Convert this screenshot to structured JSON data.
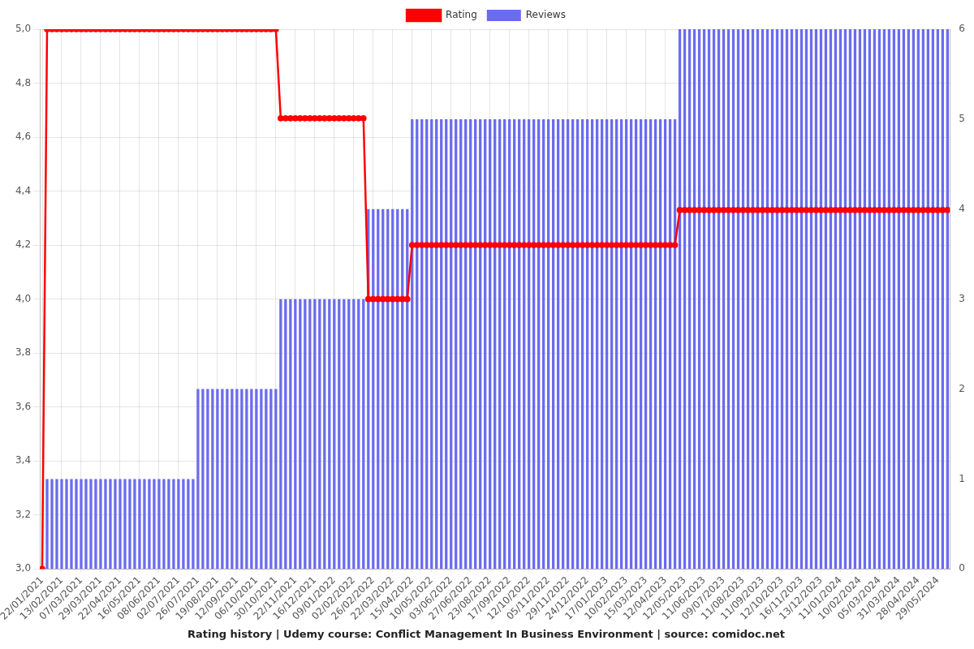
{
  "chart_data": {
    "type": "line",
    "title": "Rating history | Udemy course: Conflict Management In Business Environment | source: comidoc.net",
    "legend": "top",
    "grid": true,
    "categories": [
      "22/01/2021",
      null,
      null,
      null,
      "13/02/2021",
      null,
      null,
      null,
      "07/03/2021",
      null,
      null,
      null,
      "29/03/2021",
      null,
      null,
      null,
      "22/04/2021",
      null,
      null,
      null,
      "16/05/2021",
      null,
      null,
      null,
      "08/06/2021",
      null,
      null,
      null,
      "02/07/2021",
      null,
      null,
      null,
      "26/07/2021",
      null,
      null,
      null,
      "19/08/2021",
      null,
      null,
      null,
      "12/09/2021",
      null,
      null,
      null,
      "06/10/2021",
      null,
      null,
      null,
      "30/10/2021",
      null,
      null,
      null,
      "22/11/2021",
      null,
      null,
      null,
      "16/12/2021",
      null,
      null,
      null,
      "09/01/2022",
      null,
      null,
      null,
      "02/02/2022",
      null,
      null,
      null,
      "26/02/2022",
      null,
      null,
      null,
      "22/03/2022",
      null,
      null,
      null,
      "15/04/2022",
      null,
      null,
      null,
      "10/05/2022",
      null,
      null,
      null,
      "03/06/2022",
      null,
      null,
      null,
      "27/06/2022",
      null,
      null,
      null,
      "23/08/2022",
      null,
      null,
      null,
      "17/09/2022",
      null,
      null,
      null,
      "12/10/2022",
      null,
      null,
      null,
      "05/11/2022",
      null,
      null,
      null,
      "29/11/2022",
      null,
      null,
      null,
      "24/12/2022",
      null,
      null,
      null,
      "17/01/2023",
      null,
      null,
      null,
      "10/02/2023",
      null,
      null,
      null,
      "15/03/2023",
      null,
      null,
      null,
      "12/04/2023",
      null,
      null,
      null,
      "12/05/2023",
      null,
      null,
      null,
      "11/06/2023",
      null,
      null,
      null,
      "09/07/2023",
      null,
      null,
      null,
      "11/08/2023",
      null,
      null,
      null,
      "11/09/2023",
      null,
      null,
      null,
      "12/10/2023",
      null,
      null,
      null,
      "16/11/2023",
      null,
      null,
      null,
      "13/12/2023",
      null,
      null,
      null,
      "11/01/2024",
      null,
      null,
      null,
      "10/02/2024",
      null,
      null,
      null,
      "05/03/2024",
      null,
      null,
      null,
      "31/03/2024",
      null,
      null,
      null,
      "28/04/2024",
      null,
      null,
      null,
      "29/05/2024",
      null,
      null
    ],
    "series": [
      {
        "name": "Rating",
        "type": "line",
        "color": "#ff0000",
        "marker": "circle",
        "line_style": "solid",
        "values": [
          3,
          5,
          5,
          5,
          5,
          5,
          5,
          5,
          5,
          5,
          5,
          5,
          5,
          5,
          5,
          5,
          5,
          5,
          5,
          5,
          5,
          5,
          5,
          5,
          5,
          5,
          5,
          5,
          5,
          5,
          5,
          5,
          5,
          5,
          5,
          5,
          5,
          5,
          5,
          5,
          5,
          5,
          5,
          5,
          5,
          5,
          5,
          5,
          5,
          4.67,
          4.67,
          4.67,
          4.67,
          4.67,
          4.67,
          4.67,
          4.67,
          4.67,
          4.67,
          4.67,
          4.67,
          4.67,
          4.67,
          4.67,
          4.67,
          4.67,
          4.67,
          4,
          4,
          4,
          4,
          4,
          4,
          4,
          4,
          4,
          4.2,
          4.2,
          4.2,
          4.2,
          4.2,
          4.2,
          4.2,
          4.2,
          4.2,
          4.2,
          4.2,
          4.2,
          4.2,
          4.2,
          4.2,
          4.2,
          4.2,
          4.2,
          4.2,
          4.2,
          4.2,
          4.2,
          4.2,
          4.2,
          4.2,
          4.2,
          4.2,
          4.2,
          4.2,
          4.2,
          4.2,
          4.2,
          4.2,
          4.2,
          4.2,
          4.2,
          4.2,
          4.2,
          4.2,
          4.2,
          4.2,
          4.2,
          4.2,
          4.2,
          4.2,
          4.2,
          4.2,
          4.2,
          4.2,
          4.2,
          4.2,
          4.2,
          4.2,
          4.2,
          4.2,
          4.33,
          4.33,
          4.33,
          4.33,
          4.33,
          4.33,
          4.33,
          4.33,
          4.33,
          4.33,
          4.33,
          4.33,
          4.33,
          4.33,
          4.33,
          4.33,
          4.33,
          4.33,
          4.33,
          4.33,
          4.33,
          4.33,
          4.33,
          4.33,
          4.33,
          4.33,
          4.33,
          4.33,
          4.33,
          4.33,
          4.33,
          4.33,
          4.33,
          4.33,
          4.33,
          4.33,
          4.33,
          4.33,
          4.33,
          4.33,
          4.33,
          4.33,
          4.33,
          4.33,
          4.33,
          4.33,
          4.33,
          4.33,
          4.33,
          4.33,
          4.33,
          4.33,
          4.33,
          4.33,
          4.33,
          4.33
        ]
      },
      {
        "name": "Reviews",
        "type": "bar",
        "color": "#6b6bef",
        "axis": "y2",
        "values": [
          0,
          1,
          1,
          1,
          1,
          1,
          1,
          1,
          1,
          1,
          1,
          1,
          1,
          1,
          1,
          1,
          1,
          1,
          1,
          1,
          1,
          1,
          1,
          1,
          1,
          1,
          1,
          1,
          1,
          1,
          1,
          1,
          2,
          2,
          2,
          2,
          2,
          2,
          2,
          2,
          2,
          2,
          2,
          2,
          2,
          2,
          2,
          2,
          2,
          3,
          3,
          3,
          3,
          3,
          3,
          3,
          3,
          3,
          3,
          3,
          3,
          3,
          3,
          3,
          3,
          3,
          3,
          4,
          4,
          4,
          4,
          4,
          4,
          4,
          4,
          4,
          5,
          5,
          5,
          5,
          5,
          5,
          5,
          5,
          5,
          5,
          5,
          5,
          5,
          5,
          5,
          5,
          5,
          5,
          5,
          5,
          5,
          5,
          5,
          5,
          5,
          5,
          5,
          5,
          5,
          5,
          5,
          5,
          5,
          5,
          5,
          5,
          5,
          5,
          5,
          5,
          5,
          5,
          5,
          5,
          5,
          5,
          5,
          5,
          5,
          5,
          5,
          5,
          5,
          5,
          5,
          6,
          6,
          6,
          6,
          6,
          6,
          6,
          6,
          6,
          6,
          6,
          6,
          6,
          6,
          6,
          6,
          6,
          6,
          6,
          6,
          6,
          6,
          6,
          6,
          6,
          6,
          6,
          6,
          6,
          6,
          6,
          6,
          6,
          6,
          6,
          6,
          6,
          6,
          6,
          6,
          6,
          6,
          6,
          6,
          6,
          6,
          6,
          6,
          6,
          6,
          6,
          6,
          6,
          6,
          6,
          6
        ]
      }
    ],
    "ylim": [
      3,
      5
    ],
    "yticks": [
      {
        "value": 3,
        "label": "3,0"
      },
      {
        "value": 3.2,
        "label": "3,2"
      },
      {
        "value": 3.4,
        "label": "3,4"
      },
      {
        "value": 3.6,
        "label": "3,6"
      },
      {
        "value": 3.8,
        "label": "3,8"
      },
      {
        "value": 4,
        "label": "4,0"
      },
      {
        "value": 4.2,
        "label": "4,2"
      },
      {
        "value": 4.4,
        "label": "4,4"
      },
      {
        "value": 4.6,
        "label": "4,6"
      },
      {
        "value": 4.8,
        "label": "4,8"
      },
      {
        "value": 5,
        "label": "5,0"
      }
    ],
    "y2lim": [
      0,
      6
    ],
    "y2ticks": [
      0,
      1,
      2,
      3,
      4,
      5,
      6
    ]
  }
}
